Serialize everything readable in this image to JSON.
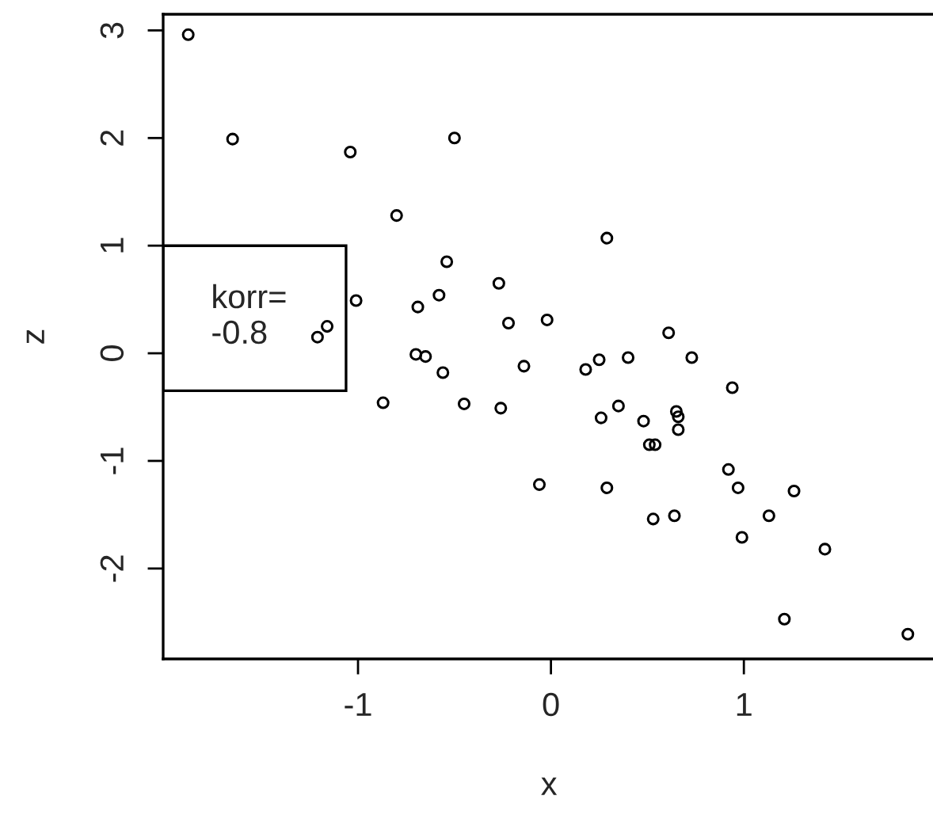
{
  "chart_data": {
    "type": "scatter",
    "xlabel": "x",
    "ylabel": "z",
    "x": [
      -1.88,
      -1.65,
      -1.04,
      -0.5,
      -0.8,
      -0.54,
      0.29,
      -0.27,
      -1.01,
      -0.58,
      -0.69,
      -0.22,
      -0.02,
      -1.16,
      -1.21,
      -0.7,
      -0.65,
      -0.56,
      -0.87,
      -0.45,
      -0.26,
      -0.14,
      0.18,
      0.25,
      0.4,
      0.61,
      0.73,
      0.65,
      0.66,
      0.66,
      0.51,
      0.54,
      0.48,
      0.35,
      0.26,
      0.94,
      0.92,
      0.97,
      1.26,
      1.13,
      0.99,
      1.42,
      1.21,
      1.85,
      -0.06,
      0.29,
      0.53,
      0.64
    ],
    "values": [
      2.96,
      1.99,
      1.87,
      2.0,
      1.28,
      0.85,
      1.07,
      0.65,
      0.49,
      0.54,
      0.43,
      0.28,
      0.31,
      0.25,
      0.15,
      -0.01,
      -0.03,
      -0.18,
      -0.46,
      -0.47,
      -0.51,
      -0.12,
      -0.15,
      -0.06,
      -0.04,
      0.19,
      -0.04,
      -0.54,
      -0.59,
      -0.71,
      -0.85,
      -0.85,
      -0.63,
      -0.49,
      -0.6,
      -0.32,
      -1.08,
      -1.25,
      -1.28,
      -1.51,
      -1.71,
      -1.82,
      -2.47,
      -2.61,
      -1.22,
      -1.25,
      -1.54,
      -1.51
    ],
    "color": "#000000",
    "marker": "circle",
    "grid": false,
    "xlim": [
      -2.01,
      1.99
    ],
    "ylim": [
      -2.84,
      3.15
    ],
    "xticks": [
      -1,
      0,
      1
    ],
    "yticks": [
      -2,
      -1,
      0,
      1,
      2,
      3
    ],
    "annotations": [
      "korr=\n-0.8"
    ]
  }
}
